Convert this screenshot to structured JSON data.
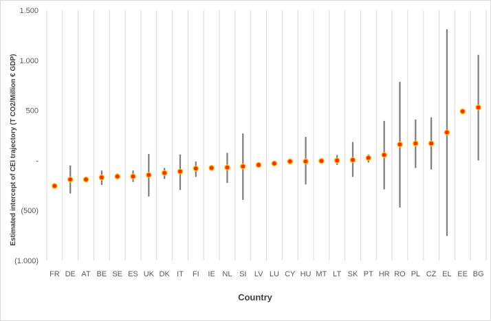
{
  "chart_data": {
    "type": "scatter",
    "xlabel": "Country",
    "ylabel": "Estimated intercept of CEI trajectory (T CO2/Million € GDP)",
    "ylim": [
      -1000,
      1500
    ],
    "yticks": [
      {
        "value": 1500,
        "label": "1.500"
      },
      {
        "value": 1000,
        "label": "1.000"
      },
      {
        "value": 500,
        "label": "500"
      },
      {
        "value": 0,
        "label": "-"
      },
      {
        "value": -500,
        "label": "(500)"
      },
      {
        "value": -1000,
        "label": "(1.000)"
      }
    ],
    "grid": "vertical",
    "colors": {
      "point_fill": "#ff2a00",
      "point_stroke": "#ffc000",
      "error_bar": "#7f7f7f",
      "gridline": "#d9d9d9",
      "tick_text": "#595959",
      "title_text": "#404040"
    },
    "points": [
      {
        "country": "FR",
        "value": -255,
        "low": -255,
        "high": -255
      },
      {
        "country": "DE",
        "value": -190,
        "low": -330,
        "high": -50
      },
      {
        "country": "AT",
        "value": -190,
        "low": -190,
        "high": -190
      },
      {
        "country": "BE",
        "value": -170,
        "low": -245,
        "high": -100
      },
      {
        "country": "SE",
        "value": -160,
        "low": -185,
        "high": -130
      },
      {
        "country": "ES",
        "value": -160,
        "low": -215,
        "high": -100
      },
      {
        "country": "UK",
        "value": -145,
        "low": -360,
        "high": 65
      },
      {
        "country": "DK",
        "value": -125,
        "low": -185,
        "high": -75
      },
      {
        "country": "IT",
        "value": -110,
        "low": -295,
        "high": 60
      },
      {
        "country": "FI",
        "value": -80,
        "low": -165,
        "high": -10
      },
      {
        "country": "IE",
        "value": -75,
        "low": -100,
        "high": -55
      },
      {
        "country": "NL",
        "value": -70,
        "low": -225,
        "high": 75
      },
      {
        "country": "SI",
        "value": -60,
        "low": -395,
        "high": 270
      },
      {
        "country": "LV",
        "value": -45,
        "low": -45,
        "high": -45
      },
      {
        "country": "LU",
        "value": -30,
        "low": -30,
        "high": -30
      },
      {
        "country": "CY",
        "value": -10,
        "low": -10,
        "high": -10
      },
      {
        "country": "HU",
        "value": -10,
        "low": -240,
        "high": 235
      },
      {
        "country": "MT",
        "value": -5,
        "low": -5,
        "high": -5
      },
      {
        "country": "LT",
        "value": 0,
        "low": -45,
        "high": 55
      },
      {
        "country": "SK",
        "value": 5,
        "low": -165,
        "high": 185
      },
      {
        "country": "PT",
        "value": 25,
        "low": -20,
        "high": 60
      },
      {
        "country": "HR",
        "value": 55,
        "low": -290,
        "high": 395
      },
      {
        "country": "RO",
        "value": 160,
        "low": -470,
        "high": 785
      },
      {
        "country": "PL",
        "value": 170,
        "low": -75,
        "high": 410
      },
      {
        "country": "CZ",
        "value": 170,
        "low": -90,
        "high": 430
      },
      {
        "country": "EL",
        "value": 280,
        "low": -755,
        "high": 1310
      },
      {
        "country": "EE",
        "value": 490,
        "low": 490,
        "high": 490
      },
      {
        "country": "BG",
        "value": 530,
        "low": 0,
        "high": 1055
      }
    ]
  }
}
